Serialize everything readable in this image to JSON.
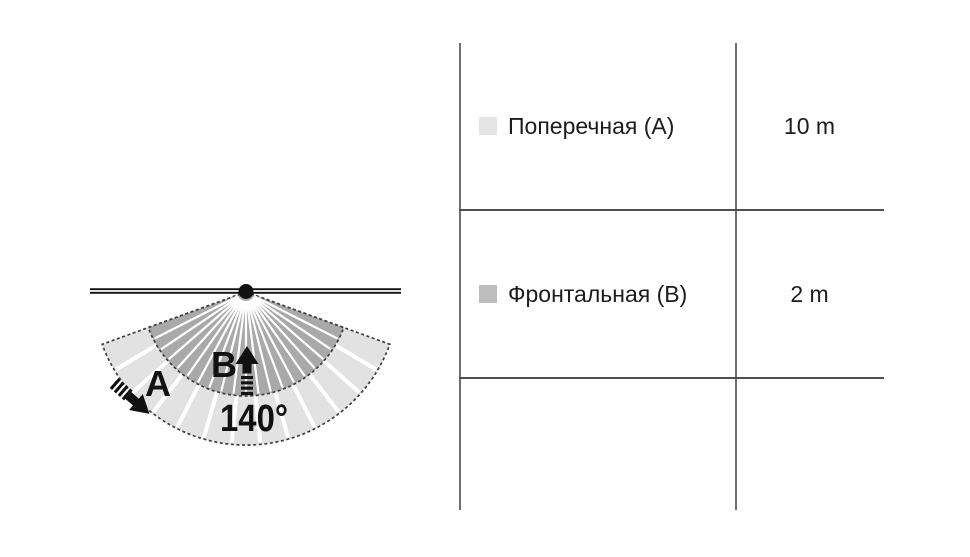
{
  "diagram": {
    "angle_label": "140°",
    "arrow_a_label": "A",
    "arrow_b_label": "B",
    "colors": {
      "outer_sector": "#e2e2e2",
      "inner_sector": "#a9a9a9",
      "outline": "#3f3f3f",
      "wall_line": "#111111"
    }
  },
  "table": {
    "rows": [
      {
        "swatch_color": "#e4e4e4",
        "label": "Поперечная (A)",
        "value": "10 m"
      },
      {
        "swatch_color": "#bdbdbd",
        "label": "Фронтальная (B)",
        "value": "2 m"
      },
      {
        "swatch_color": "",
        "label": "",
        "value": ""
      }
    ]
  }
}
